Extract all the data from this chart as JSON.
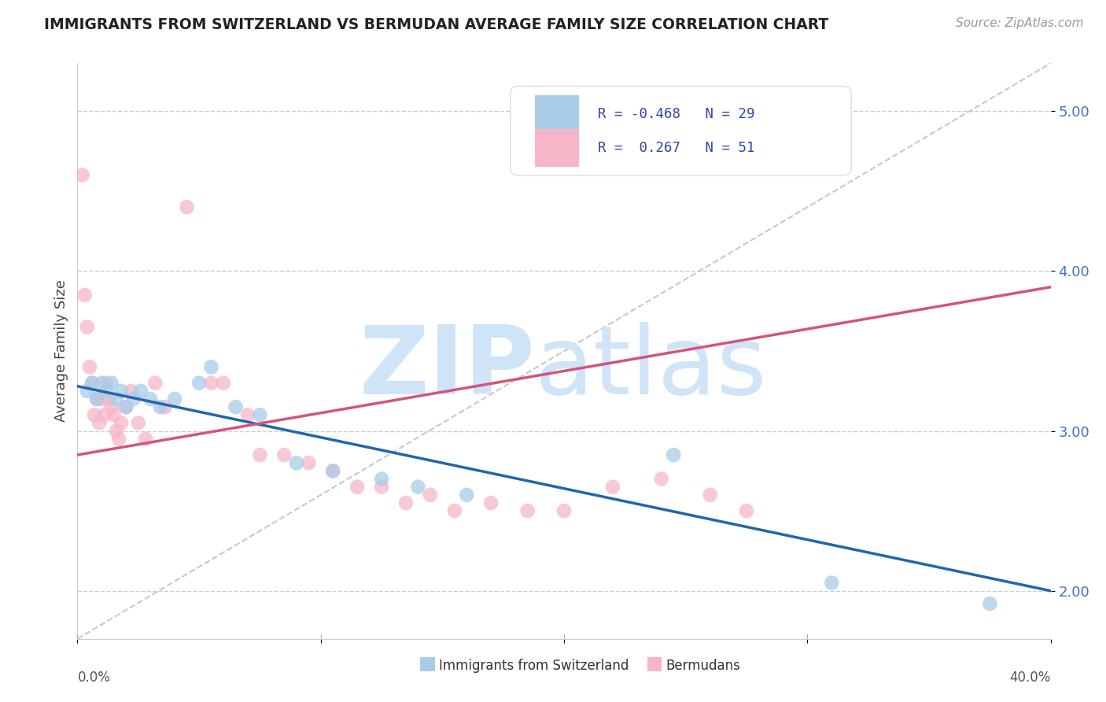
{
  "title": "IMMIGRANTS FROM SWITZERLAND VS BERMUDAN AVERAGE FAMILY SIZE CORRELATION CHART",
  "source_text": "Source: ZipAtlas.com",
  "ylabel": "Average Family Size",
  "xmin": 0.0,
  "xmax": 40.0,
  "ymin": 1.7,
  "ymax": 5.3,
  "yticks": [
    2.0,
    3.0,
    4.0,
    5.0
  ],
  "xticks": [
    0.0,
    10.0,
    20.0,
    30.0,
    40.0
  ],
  "blue_R": -0.468,
  "blue_N": 29,
  "pink_R": 0.267,
  "pink_N": 51,
  "blue_color": "#a8cce8",
  "pink_color": "#f7b6c8",
  "blue_line_color": "#2166ac",
  "pink_line_color": "#d6537a",
  "watermark_zip": "ZIP",
  "watermark_atlas": "atlas",
  "watermark_color": "#d0e4f7",
  "blue_trend_y0": 3.28,
  "blue_trend_y1": 2.0,
  "pink_trend_y0": 2.85,
  "pink_trend_y1": 3.9,
  "diag_x0": 0.0,
  "diag_x1": 40.0,
  "diag_y0": 1.7,
  "diag_y1": 5.3,
  "blue_points_x": [
    0.4,
    0.6,
    0.8,
    1.0,
    1.2,
    1.4,
    1.6,
    1.8,
    2.0,
    2.3,
    2.6,
    3.0,
    3.4,
    4.0,
    5.0,
    5.5,
    6.5,
    7.5,
    9.0,
    10.5,
    12.5,
    14.0,
    16.0,
    24.5,
    31.0,
    37.5
  ],
  "blue_points_y": [
    3.25,
    3.3,
    3.2,
    3.3,
    3.25,
    3.3,
    3.2,
    3.25,
    3.15,
    3.2,
    3.25,
    3.2,
    3.15,
    3.2,
    3.3,
    3.4,
    3.15,
    3.1,
    2.8,
    2.75,
    2.7,
    2.65,
    2.6,
    2.85,
    2.05,
    1.92
  ],
  "pink_points_x": [
    0.2,
    0.3,
    0.4,
    0.5,
    0.6,
    0.7,
    0.8,
    0.9,
    1.0,
    1.1,
    1.2,
    1.3,
    1.4,
    1.5,
    1.6,
    1.7,
    1.8,
    2.0,
    2.2,
    2.5,
    2.8,
    3.2,
    3.6,
    4.5,
    5.5,
    6.0,
    7.0,
    7.5,
    8.5,
    9.5,
    10.5,
    11.5,
    12.5,
    13.5,
    14.5,
    15.5,
    17.0,
    18.5,
    20.0,
    22.0,
    24.0,
    26.0,
    27.5
  ],
  "pink_points_y": [
    4.6,
    3.85,
    3.65,
    3.4,
    3.3,
    3.1,
    3.2,
    3.05,
    3.2,
    3.1,
    3.3,
    3.2,
    3.15,
    3.1,
    3.0,
    2.95,
    3.05,
    3.15,
    3.25,
    3.05,
    2.95,
    3.3,
    3.15,
    4.4,
    3.3,
    3.3,
    3.1,
    2.85,
    2.85,
    2.8,
    2.75,
    2.65,
    2.65,
    2.55,
    2.6,
    2.5,
    2.55,
    2.5,
    2.5,
    2.65,
    2.7,
    2.6,
    2.5
  ]
}
